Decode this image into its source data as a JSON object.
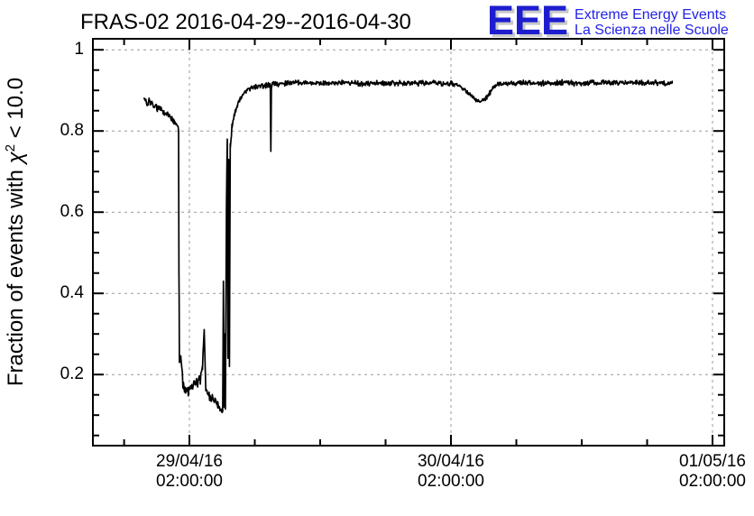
{
  "header": {
    "title": "FRAS-02 2016-04-29--2016-04-30",
    "logo": {
      "acronym": "EEE",
      "line1": "Extreme Energy Events",
      "line2": "La Scienza nelle Scuole",
      "acronym_color": "#1d1dcf",
      "text_color": "#2222e6",
      "shadow_color": "#c8c8c8"
    }
  },
  "chart_data": {
    "type": "line",
    "title": "FRAS-02 2016-04-29--2016-04-30",
    "xlabel": "",
    "ylabel": "Fraction of events with χ² < 10.0",
    "ylabel_parts": {
      "prefix": "Fraction of events with ",
      "chi": "χ",
      "exponent": "2",
      "suffix": " < 10.0"
    },
    "x_unit": "hours since 29/04/16 00:00:00",
    "xlim": [
      -6.86,
      51.08
    ],
    "ylim": [
      0.025,
      1.027
    ],
    "grid": {
      "color": "#999999",
      "dash": "3,4",
      "on": true
    },
    "frame_color": "#000000",
    "x_major_ticks": [
      {
        "t": 2,
        "label_line1": "29/04/16",
        "label_line2": "02:00:00"
      },
      {
        "t": 26,
        "label_line1": "30/04/16",
        "label_line2": "02:00:00"
      },
      {
        "t": 50,
        "label_line1": "01/05/16",
        "label_line2": "02:00:00"
      }
    ],
    "x_minor_step_hours": 6,
    "y_major_ticks": [
      {
        "v": 1.0,
        "label": "1"
      },
      {
        "v": 0.8,
        "label": "0.8"
      },
      {
        "v": 0.6,
        "label": "0.6"
      },
      {
        "v": 0.4,
        "label": "0.4"
      },
      {
        "v": 0.2,
        "label": "0.2"
      }
    ],
    "y_minor_step": 0.05,
    "series": [
      {
        "name": "fraction of events with chi2 < 10",
        "color": "#000000",
        "line_width": 1.7,
        "noise_seed": 20160429,
        "sample_step_hours": 0.05,
        "keypoints": [
          [
            -2.15,
            0.878,
            0.013
          ],
          [
            -1.6,
            0.87,
            0.013
          ],
          [
            -1.0,
            0.858,
            0.013
          ],
          [
            -0.4,
            0.852,
            0.012
          ],
          [
            0.1,
            0.838,
            0.01
          ],
          [
            0.6,
            0.824,
            0.008
          ],
          [
            0.95,
            0.812,
            0.004
          ],
          [
            1.0,
            0.8,
            0.0
          ],
          [
            1.04,
            0.45,
            0.0
          ],
          [
            1.08,
            0.23,
            0.0
          ],
          [
            1.2,
            0.24,
            0.02
          ],
          [
            1.45,
            0.17,
            0.02
          ],
          [
            1.8,
            0.16,
            0.018
          ],
          [
            2.2,
            0.17,
            0.018
          ],
          [
            2.6,
            0.18,
            0.016
          ],
          [
            3.0,
            0.19,
            0.016
          ],
          [
            3.2,
            0.22,
            0.01
          ],
          [
            3.35,
            0.31,
            0.004
          ],
          [
            3.5,
            0.16,
            0.012
          ],
          [
            3.8,
            0.15,
            0.018
          ],
          [
            4.2,
            0.14,
            0.015
          ],
          [
            4.6,
            0.125,
            0.012
          ],
          [
            4.9,
            0.11,
            0.01
          ],
          [
            5.05,
            0.115,
            0.01
          ],
          [
            5.12,
            0.43,
            0.0
          ],
          [
            5.18,
            0.12,
            0.0
          ],
          [
            5.24,
            0.3,
            0.0
          ],
          [
            5.3,
            0.115,
            0.0
          ],
          [
            5.4,
            0.62,
            0.0
          ],
          [
            5.47,
            0.78,
            0.0
          ],
          [
            5.53,
            0.24,
            0.0
          ],
          [
            5.6,
            0.73,
            0.0
          ],
          [
            5.67,
            0.22,
            0.0
          ],
          [
            5.75,
            0.76,
            0.01
          ],
          [
            5.9,
            0.81,
            0.01
          ],
          [
            6.1,
            0.84,
            0.01
          ],
          [
            6.4,
            0.865,
            0.01
          ],
          [
            6.8,
            0.885,
            0.009
          ],
          [
            7.2,
            0.898,
            0.008
          ],
          [
            7.8,
            0.906,
            0.008
          ],
          [
            8.5,
            0.91,
            0.008
          ],
          [
            9.2,
            0.913,
            0.008
          ],
          [
            9.42,
            0.914,
            0.004
          ],
          [
            9.47,
            0.75,
            0.0
          ],
          [
            9.52,
            0.905,
            0.0
          ],
          [
            9.6,
            0.915,
            0.008
          ],
          [
            10.5,
            0.916,
            0.008
          ],
          [
            12.0,
            0.918,
            0.008
          ],
          [
            14.0,
            0.917,
            0.008
          ],
          [
            16.0,
            0.918,
            0.008
          ],
          [
            18.0,
            0.917,
            0.008
          ],
          [
            20.0,
            0.918,
            0.008
          ],
          [
            22.0,
            0.917,
            0.008
          ],
          [
            24.0,
            0.918,
            0.008
          ],
          [
            26.0,
            0.917,
            0.008
          ],
          [
            26.8,
            0.912,
            0.008
          ],
          [
            27.5,
            0.896,
            0.008
          ],
          [
            28.3,
            0.878,
            0.008
          ],
          [
            28.7,
            0.871,
            0.008
          ],
          [
            29.3,
            0.884,
            0.008
          ],
          [
            29.9,
            0.906,
            0.008
          ],
          [
            30.4,
            0.916,
            0.008
          ],
          [
            32.0,
            0.918,
            0.008
          ],
          [
            34.0,
            0.918,
            0.008
          ],
          [
            36.0,
            0.919,
            0.008
          ],
          [
            38.0,
            0.918,
            0.008
          ],
          [
            40.0,
            0.918,
            0.008
          ],
          [
            42.0,
            0.919,
            0.008
          ],
          [
            44.0,
            0.918,
            0.008
          ],
          [
            45.5,
            0.918,
            0.008
          ],
          [
            46.3,
            0.917,
            0.008
          ]
        ]
      }
    ]
  }
}
